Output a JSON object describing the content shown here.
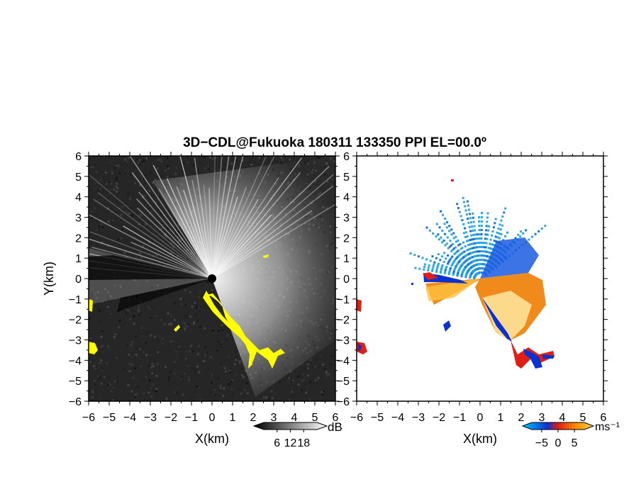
{
  "title": "3D−CDL@Fukuoka 180311 133350 PPI EL=00.0º",
  "chart_data": [
    {
      "type": "heatmap",
      "panel": "left",
      "quantity": "reflectivity",
      "xlabel": "X(km)",
      "ylabel": "Y(km)",
      "xlim": [
        -6,
        6
      ],
      "ylim": [
        -6,
        6
      ],
      "x_ticks": [
        "−6",
        "−5",
        "−4",
        "−3",
        "−2",
        "−1",
        "0",
        "1",
        "2",
        "3",
        "4",
        "5",
        "6"
      ],
      "y_ticks": [
        "6",
        "5",
        "4",
        "3",
        "2",
        "1",
        "0",
        "−1",
        "−2",
        "−3",
        "−4",
        "−5",
        "−6"
      ],
      "colorbar": {
        "unit": "dB",
        "ticks": [
          "6",
          "12",
          "18"
        ],
        "tick_values": [
          6,
          12,
          18
        ],
        "range": [
          0,
          24
        ]
      },
      "background_color": "#2a2a2a",
      "highlight_color": "#ffff00"
    },
    {
      "type": "heatmap",
      "panel": "right",
      "quantity": "doppler velocity",
      "xlabel": "X(km)",
      "xlim": [
        -6,
        6
      ],
      "ylim": [
        -6,
        6
      ],
      "x_ticks": [
        "−6",
        "−5",
        "−4",
        "−3",
        "−2",
        "−1",
        "0",
        "1",
        "2",
        "3",
        "4",
        "5",
        "6"
      ],
      "y_ticks": [
        "6",
        "5",
        "4",
        "3",
        "2",
        "1",
        "0",
        "−1",
        "−2",
        "−3",
        "−4",
        "−5",
        "−6"
      ],
      "colorbar": {
        "unit": "ms⁻¹",
        "ticks": [
          "−5",
          "0",
          "5"
        ],
        "tick_values": [
          -5,
          0,
          5
        ],
        "range": [
          -8,
          8
        ],
        "colors": [
          "#00c8ff",
          "#0a32d2",
          "#e11e14",
          "#ff8c00",
          "#ffd24a"
        ]
      },
      "colors": {
        "approaching": "#29a8e0",
        "receding": "#f08a1a",
        "strong_receding": "#e11e14",
        "strong_approaching": "#0a32d2"
      }
    }
  ]
}
